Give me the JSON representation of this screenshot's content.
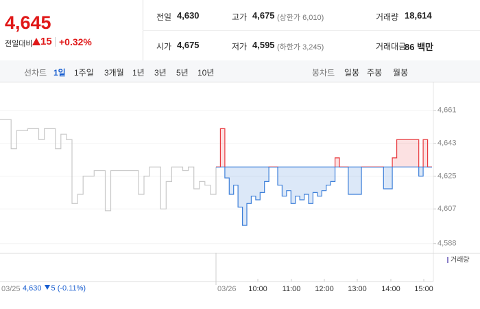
{
  "quote": {
    "price": "4,645",
    "change_label": "전일대비",
    "change": "15",
    "rate": "+0.32%",
    "fields": [
      {
        "label": "전일",
        "value": "4,630"
      },
      {
        "label": "고가",
        "value": "4,675",
        "note": "(상한가 6,010)"
      },
      {
        "label": "거래량",
        "value": "18,614"
      },
      {
        "label": "시가",
        "value": "4,675"
      },
      {
        "label": "저가",
        "value": "4,595",
        "note": "(하한가 3,245)"
      },
      {
        "label": "거래대금",
        "value": "86 백만"
      }
    ]
  },
  "tabs": {
    "line_label": "선차트",
    "periods": [
      "1일",
      "1주일",
      "3개월",
      "1년",
      "3년",
      "5년",
      "10년"
    ],
    "candle_label": "봉차트",
    "candles": [
      "일봉",
      "주봉",
      "월봉"
    ]
  },
  "prev_summary": {
    "close": "4,630",
    "change": "5",
    "rate": "(-0.11%)"
  },
  "chart_data": {
    "type": "line",
    "ylim": [
      4583,
      4676
    ],
    "yticks": [
      {
        "value": 4661,
        "label": "4,661"
      },
      {
        "value": 4643,
        "label": "4,643"
      },
      {
        "value": 4625,
        "label": "4,625"
      },
      {
        "value": 4607,
        "label": "4,607"
      },
      {
        "value": 4588,
        "label": "4,588"
      }
    ],
    "grid": true,
    "baseline": 4630,
    "x_labels": [
      "10:00",
      "11:00",
      "12:00",
      "13:00",
      "14:00",
      "15:00"
    ],
    "volume_label": "거래량",
    "series": [
      {
        "name": "03/25",
        "color": "#c8c8c8",
        "values": [
          4656,
          4656,
          4640,
          4650,
          4650,
          4651,
          4651,
          4645,
          4651,
          4651,
          4640,
          4648,
          4645,
          4610,
          4615,
          4625,
          4625,
          4628,
          4628,
          4606,
          4628,
          4628,
          4628,
          4628,
          4628,
          4615,
          4625,
          4630,
          4630,
          4607,
          4622,
          4630,
          4630,
          4628,
          4630,
          4618,
          4622,
          4620,
          4615,
          4630
        ]
      },
      {
        "name": "03/26",
        "color": "#3d7fd9",
        "up_color": "#e8383d",
        "values": [
          4630,
          4651,
          4624,
          4615,
          4620,
          4608,
          4598,
          4610,
          4614,
          4612,
          4616,
          4622,
          4630,
          4630,
          4620,
          4614,
          4617,
          4610,
          4614,
          4612,
          4615,
          4610,
          4616,
          4614,
          4617,
          4620,
          4622,
          4635,
          4630,
          4630,
          4615,
          4615,
          4615,
          4630,
          4630,
          4630,
          4630,
          4630,
          4618,
          4618,
          4635,
          4645,
          4645,
          4645,
          4645,
          4645,
          4625,
          4645,
          4630,
          4630
        ]
      }
    ]
  }
}
